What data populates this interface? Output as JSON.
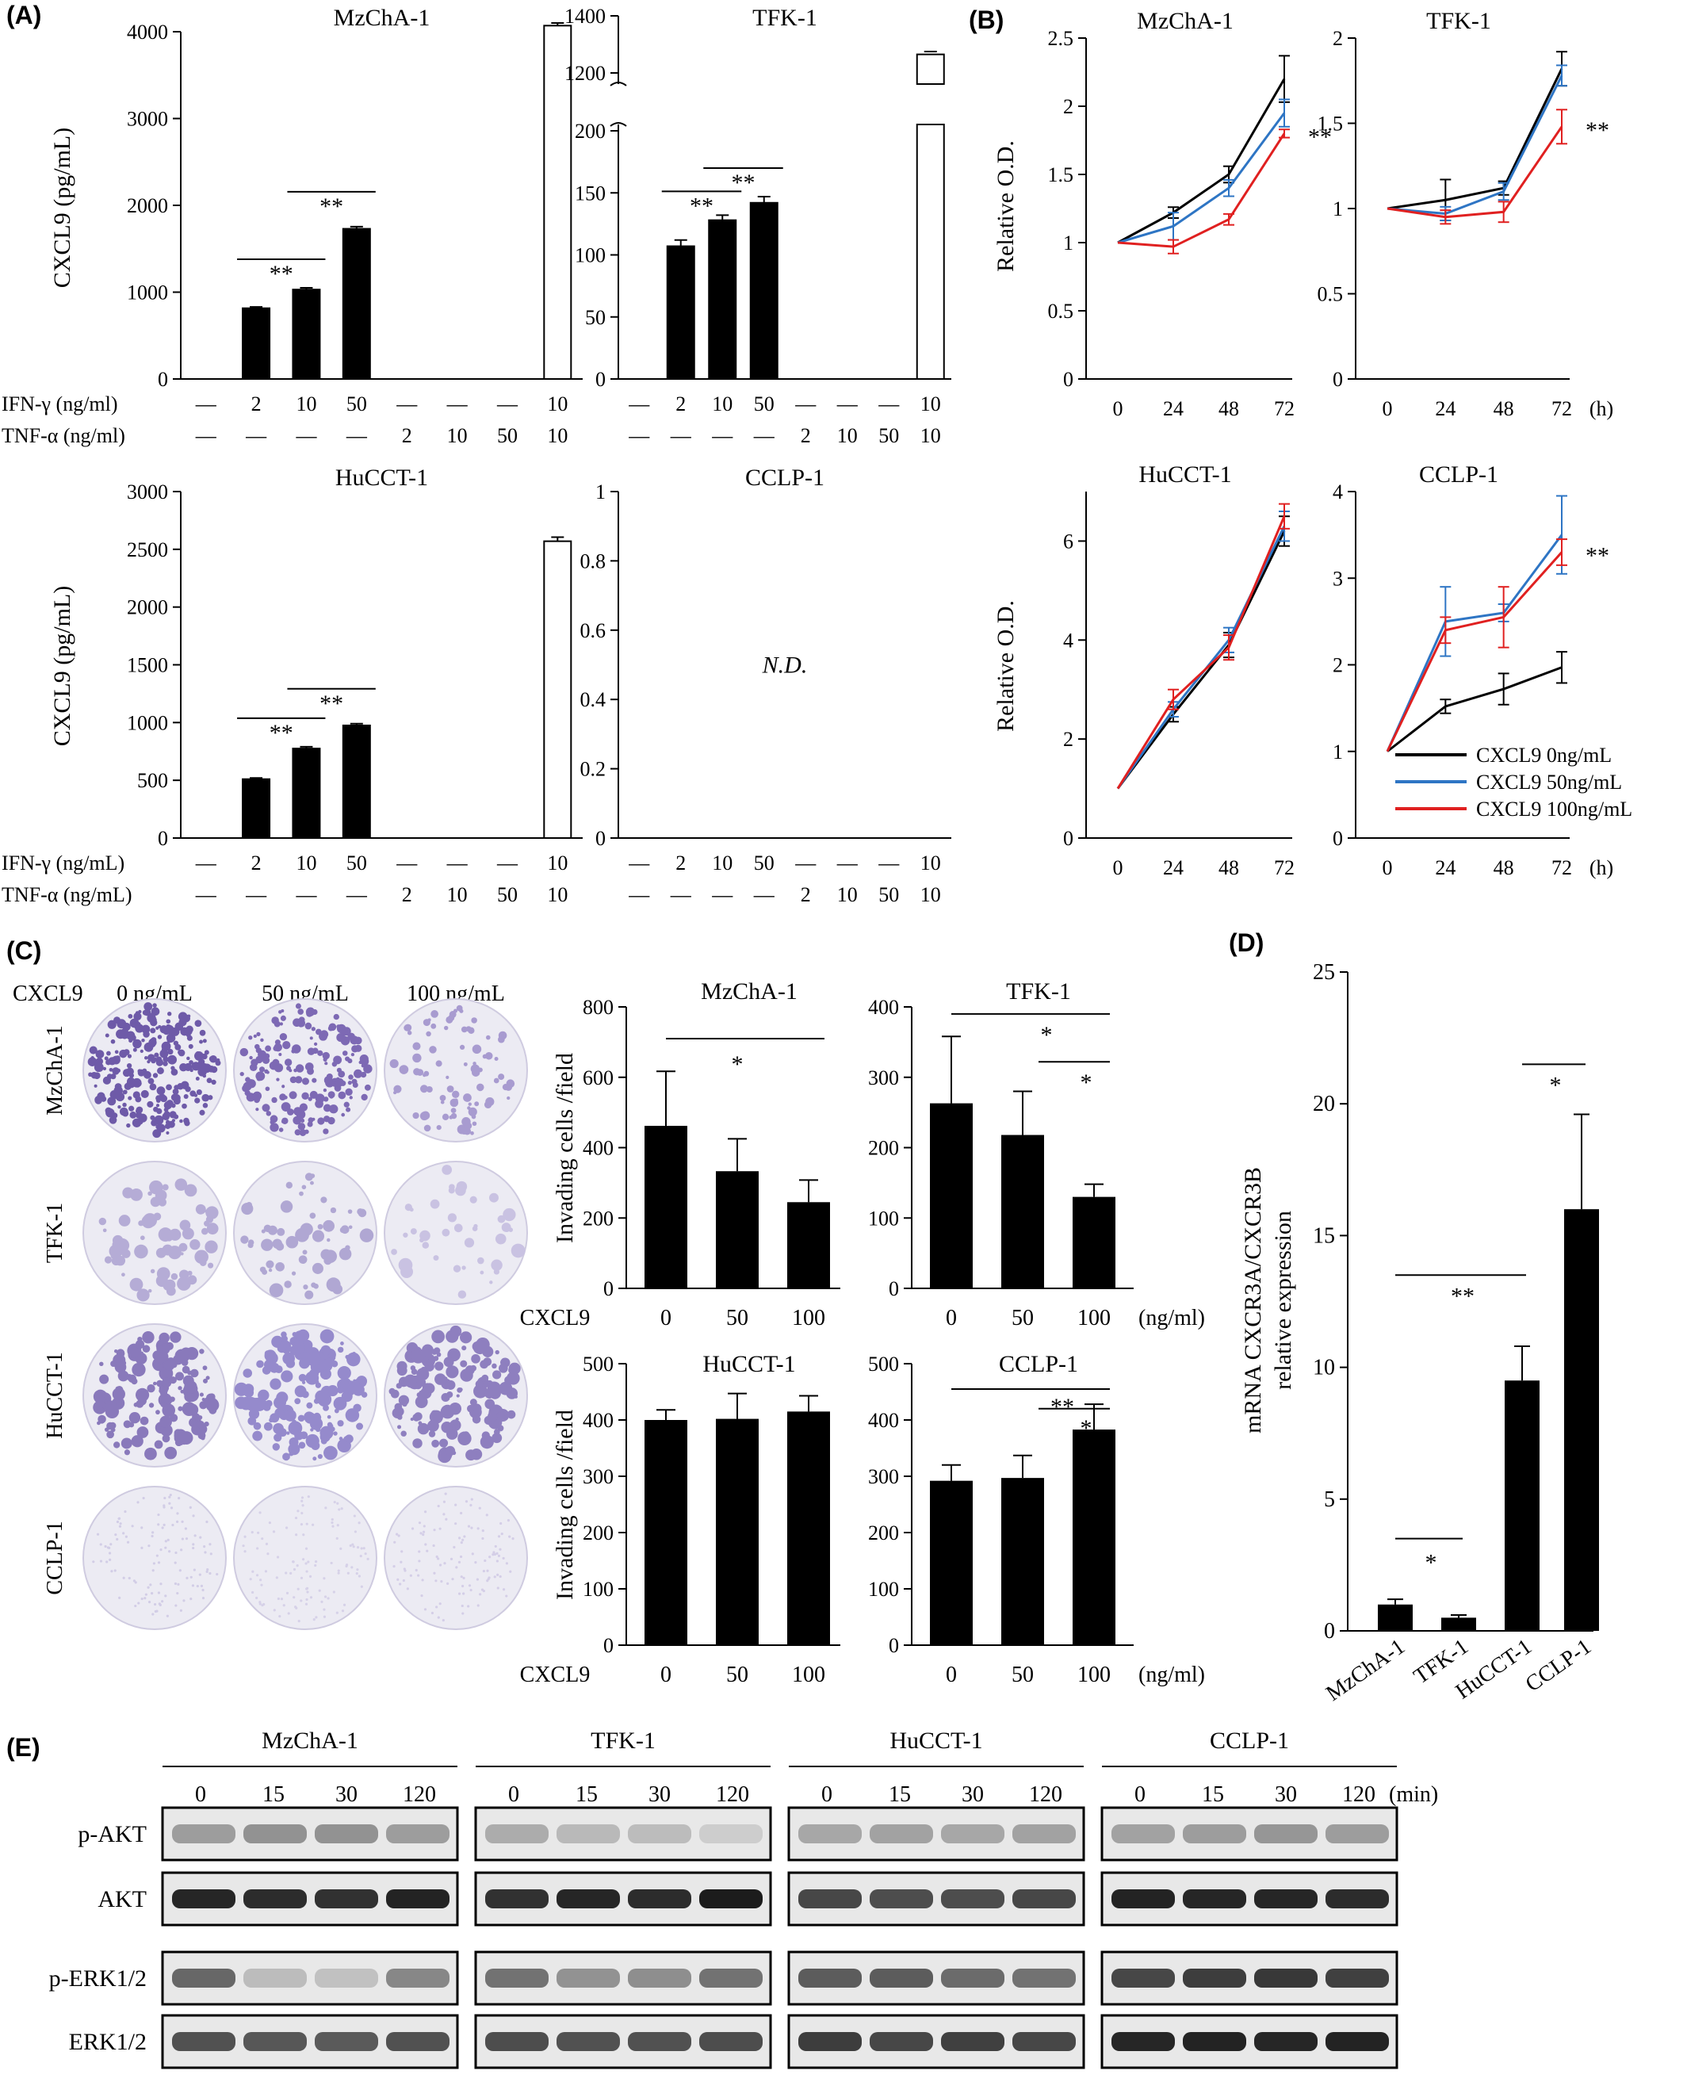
{
  "panels": {
    "A": {
      "label": "(A)",
      "ylabel": "CXCL9 (pg/mL)",
      "charts": [
        {
          "title": "MzChA-1",
          "type": "bar",
          "ylim": [
            0,
            4000
          ],
          "ticks": [
            0,
            1000,
            2000,
            3000,
            4000
          ],
          "values": [
            0,
            815,
            1030,
            1730,
            0,
            0,
            0,
            4070
          ],
          "errors": [
            0,
            15,
            20,
            25,
            0,
            0,
            0,
            30
          ],
          "filled": [
            true,
            true,
            true,
            true,
            true,
            true,
            true,
            false
          ],
          "sig": [
            {
              "from": 1,
              "to": 2,
              "text": "**"
            },
            {
              "from": 2,
              "to": 3,
              "text": "**"
            }
          ]
        },
        {
          "title": "TFK-1",
          "type": "bar",
          "broken": true,
          "ylim": [
            0,
            200
          ],
          "ticks": [
            0,
            50,
            100,
            150,
            200
          ],
          "upper_ticks": [
            1200,
            1400
          ],
          "values": [
            0,
            107,
            128,
            142,
            0,
            0,
            0,
            1265
          ],
          "errors": [
            0,
            5,
            4,
            5,
            0,
            0,
            0,
            10
          ],
          "filled": [
            true,
            true,
            true,
            true,
            true,
            true,
            true,
            false
          ],
          "sig": [
            {
              "from": 1,
              "to": 2,
              "text": "**"
            },
            {
              "from": 2,
              "to": 3,
              "text": "**"
            }
          ]
        },
        {
          "title": "HuCCT-1",
          "type": "bar",
          "ylim": [
            0,
            3000
          ],
          "ticks": [
            0,
            500,
            1000,
            1500,
            2000,
            2500,
            3000
          ],
          "values": [
            0,
            510,
            775,
            975,
            0,
            0,
            0,
            2570
          ],
          "errors": [
            0,
            10,
            15,
            15,
            0,
            0,
            0,
            35
          ],
          "filled": [
            true,
            true,
            true,
            true,
            true,
            true,
            true,
            false
          ],
          "sig": [
            {
              "from": 1,
              "to": 2,
              "text": "**"
            },
            {
              "from": 2,
              "to": 3,
              "text": "**"
            }
          ]
        },
        {
          "title": "CCLP-1",
          "type": "bar",
          "ylim": [
            0,
            1
          ],
          "ticks": [
            0,
            0.2,
            0.4,
            0.6,
            0.8,
            1
          ],
          "values": [
            0,
            0,
            0,
            0,
            0,
            0,
            0,
            0
          ],
          "errors": [
            0,
            0,
            0,
            0,
            0,
            0,
            0,
            0
          ],
          "filled": [
            true,
            true,
            true,
            true,
            true,
            true,
            true,
            false
          ],
          "sig": [],
          "note": "N.D."
        }
      ],
      "row_labels_top": [
        "IFN-γ (ng/ml)",
        "TNF-α (ng/ml)"
      ],
      "row_labels_bottom": [
        "IFN-γ (ng/mL)",
        "TNF-α (ng/mL)"
      ],
      "ifn_values": [
        "—",
        "2",
        "10",
        "50",
        "—",
        "—",
        "—",
        "10"
      ],
      "tnf_values": [
        "—",
        "—",
        "—",
        "—",
        "2",
        "10",
        "50",
        "10"
      ]
    },
    "B": {
      "label": "(B)",
      "ylabel": "Relative O.D.",
      "xunit": "(h)",
      "x": [
        0,
        24,
        48,
        72
      ],
      "legend": [
        "CXCL9 0ng/mL",
        "CXCL9 50ng/mL",
        "CXCL9 100ng/mL"
      ],
      "colors": [
        "#000000",
        "#2e75c4",
        "#e02020"
      ],
      "charts": [
        {
          "title": "MzChA-1",
          "ylim": [
            0,
            2.5
          ],
          "ticks": [
            0,
            0.5,
            1,
            1.5,
            2,
            2.5
          ],
          "series": [
            [
              1,
              1.22,
              1.5,
              2.2
            ],
            [
              1,
              1.12,
              1.4,
              1.95
            ],
            [
              1,
              0.97,
              1.17,
              1.8
            ]
          ],
          "err": [
            [
              0.02,
              0.04,
              0.06,
              0.17
            ],
            [
              0.02,
              0.1,
              0.06,
              0.1
            ],
            [
              0.02,
              0.05,
              0.04,
              0.03
            ]
          ],
          "sig": "**"
        },
        {
          "title": "TFK-1",
          "ylim": [
            0,
            2
          ],
          "ticks": [
            0,
            0.5,
            1,
            1.5,
            2
          ],
          "series": [
            [
              1,
              1.05,
              1.12,
              1.82
            ],
            [
              1,
              0.97,
              1.1,
              1.78
            ],
            [
              1,
              0.95,
              0.98,
              1.48
            ]
          ],
          "err": [
            [
              0.03,
              0.12,
              0.04,
              0.1
            ],
            [
              0.03,
              0.04,
              0.05,
              0.06
            ],
            [
              0.03,
              0.04,
              0.06,
              0.1
            ]
          ],
          "sig": "**"
        },
        {
          "title": "HuCCT-1",
          "ylim": [
            0,
            7
          ],
          "ticks": [
            0,
            2,
            4,
            6
          ],
          "series": [
            [
              1,
              2.5,
              3.9,
              6.2
            ],
            [
              1,
              2.6,
              4.0,
              6.3
            ],
            [
              1,
              2.8,
              3.85,
              6.5
            ]
          ],
          "err": [
            [
              0.08,
              0.15,
              0.25,
              0.3
            ],
            [
              0.08,
              0.15,
              0.25,
              0.3
            ],
            [
              0.08,
              0.2,
              0.25,
              0.25
            ]
          ],
          "sig": ""
        },
        {
          "title": "CCLP-1",
          "ylim": [
            0,
            4
          ],
          "ticks": [
            0,
            1,
            2,
            3,
            4
          ],
          "series": [
            [
              1,
              1.52,
              1.72,
              1.97
            ],
            [
              1,
              2.5,
              2.6,
              3.5
            ],
            [
              1,
              2.4,
              2.55,
              3.3
            ]
          ],
          "err": [
            [
              0.2,
              0.08,
              0.18,
              0.18
            ],
            [
              0.2,
              0.4,
              0.1,
              0.45
            ],
            [
              0.2,
              0.15,
              0.35,
              0.15
            ]
          ],
          "sig": "**"
        }
      ]
    },
    "C": {
      "label": "(C)",
      "cxcl9_label": "CXCL9",
      "conc_labels": [
        "0 ng/mL",
        "50 ng/mL",
        "100 ng/mL"
      ],
      "cell_lines": [
        "MzChA-1",
        "TFK-1",
        "HuCCT-1",
        "CCLP-1"
      ],
      "ylabel": "Invading cells /field",
      "xlabel": "CXCL9",
      "xcats": [
        "0",
        "50",
        "100"
      ],
      "xunit": "(ng/ml)",
      "charts": [
        {
          "title": "MzChA-1",
          "ylim": [
            0,
            800
          ],
          "ticks": [
            0,
            200,
            400,
            600,
            800
          ],
          "values": [
            462,
            333,
            245
          ],
          "errors": [
            155,
            92,
            63
          ]
        },
        {
          "title": "TFK-1",
          "ylim": [
            0,
            400
          ],
          "ticks": [
            0,
            100,
            200,
            300,
            400
          ],
          "values": [
            263,
            218,
            130
          ],
          "errors": [
            95,
            62,
            18
          ]
        },
        {
          "title": "HuCCT-1",
          "ylim": [
            0,
            500
          ],
          "ticks": [
            0,
            100,
            200,
            300,
            400,
            500
          ],
          "values": [
            400,
            402,
            415
          ],
          "errors": [
            18,
            45,
            28
          ]
        },
        {
          "title": "CCLP-1",
          "ylim": [
            0,
            500
          ],
          "ticks": [
            0,
            100,
            200,
            300,
            400,
            500
          ],
          "values": [
            292,
            297,
            383
          ],
          "errors": [
            28,
            40,
            45
          ]
        }
      ]
    },
    "D": {
      "label": "(D)",
      "ylabel_lines": [
        "mRNA CXCR3A/CXCR3B",
        "relative expression"
      ],
      "categories": [
        "MzChA-1",
        "TFK-1",
        "HuCCT-1",
        "CCLP-1"
      ],
      "values": [
        1,
        0.5,
        9.5,
        16
      ],
      "errors": [
        0.2,
        0.1,
        1.3,
        3.6
      ],
      "ylim": [
        0,
        25
      ],
      "ticks": [
        0,
        5,
        10,
        15,
        20,
        25
      ]
    },
    "E": {
      "label": "(E)",
      "groups": [
        "MzChA-1",
        "TFK-1",
        "HuCCT-1",
        "CCLP-1"
      ],
      "times": [
        "0",
        "15",
        "30",
        "120"
      ],
      "time_unit": "(min)",
      "rows": [
        "p-AKT",
        "AKT",
        "p-ERK1/2",
        "ERK1/2"
      ]
    }
  }
}
